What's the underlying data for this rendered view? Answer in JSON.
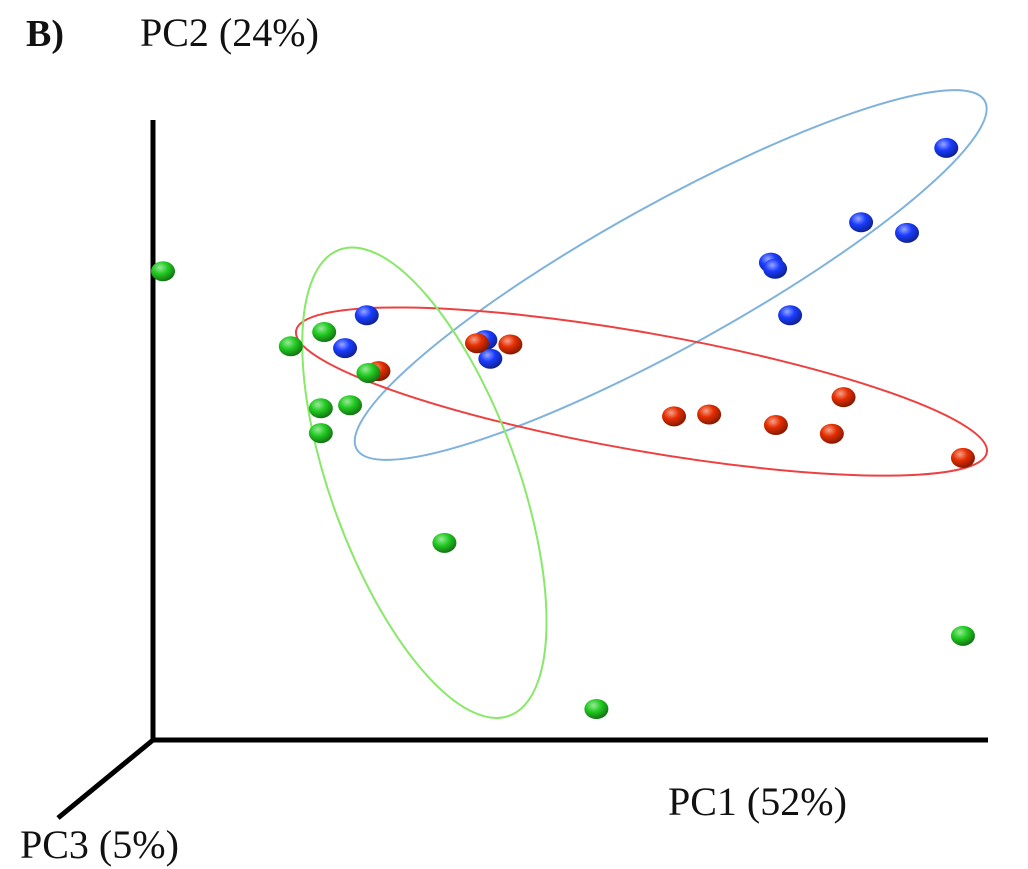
{
  "chart_data": {
    "type": "scatter",
    "panel_label": "B)",
    "axes": {
      "x": {
        "label": "PC1 (52%)"
      },
      "y": {
        "label": "PC2 (24%)"
      },
      "z": {
        "label": "PC3 (5%)"
      }
    },
    "grid": false,
    "legend": "none",
    "series": [
      {
        "color": "#1a3cff",
        "ellipse_color": "#7fb2dc",
        "points": [
          [
            0.95,
            0.955
          ],
          [
            0.848,
            0.835
          ],
          [
            0.903,
            0.818
          ],
          [
            0.74,
            0.77
          ],
          [
            0.745,
            0.76
          ],
          [
            0.763,
            0.685
          ],
          [
            0.256,
            0.685
          ],
          [
            0.398,
            0.645
          ],
          [
            0.404,
            0.615
          ],
          [
            0.23,
            0.632
          ]
        ],
        "ellipse": {
          "cx": 0.62,
          "cy": 0.75,
          "rx": 0.43,
          "ry": 0.115,
          "angle": -29
        }
      },
      {
        "color": "#e62e00",
        "ellipse_color": "#ee4040",
        "points": [
          [
            0.388,
            0.64
          ],
          [
            0.428,
            0.638
          ],
          [
            0.27,
            0.595
          ],
          [
            0.624,
            0.522
          ],
          [
            0.666,
            0.525
          ],
          [
            0.746,
            0.508
          ],
          [
            0.813,
            0.494
          ],
          [
            0.827,
            0.553
          ],
          [
            0.97,
            0.455
          ]
        ],
        "ellipse": {
          "cx": 0.585,
          "cy": 0.562,
          "rx": 0.42,
          "ry": 0.095,
          "angle": 10
        }
      },
      {
        "color": "#22cc22",
        "ellipse_color": "#88e868",
        "points": [
          [
            0.012,
            0.756
          ],
          [
            0.205,
            0.658
          ],
          [
            0.165,
            0.635
          ],
          [
            0.258,
            0.592
          ],
          [
            0.201,
            0.535
          ],
          [
            0.236,
            0.54
          ],
          [
            0.201,
            0.495
          ],
          [
            0.349,
            0.318
          ],
          [
            0.97,
            0.168
          ],
          [
            0.531,
            0.05
          ]
        ],
        "ellipse": {
          "cx": 0.325,
          "cy": 0.415,
          "rx": 0.112,
          "ry": 0.4,
          "angle": -20
        }
      }
    ]
  }
}
